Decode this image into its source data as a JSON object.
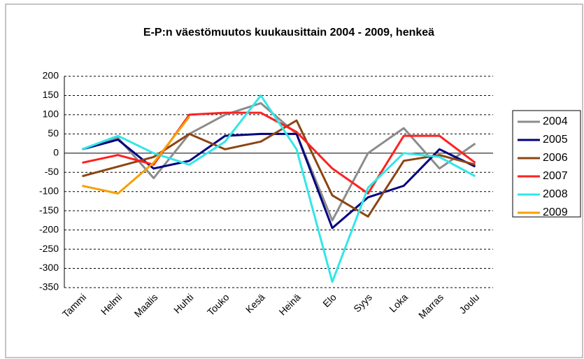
{
  "chart_data": {
    "type": "line",
    "title": "E-P:n väestömuutos kuukausittain 2004 - 2009, henkeä",
    "categories": [
      "Tammi",
      "Helmi",
      "Maalis",
      "Huhti",
      "Touko",
      "Kesä",
      "Heinä",
      "Elo",
      "Syys",
      "Loka",
      "Marras",
      "Joulu"
    ],
    "series": [
      {
        "name": "2004",
        "color": "#8c8c8c",
        "values": [
          10,
          40,
          -65,
          50,
          100,
          130,
          50,
          -175,
          0,
          65,
          -40,
          25
        ]
      },
      {
        "name": "2005",
        "color": "#000080",
        "values": [
          10,
          35,
          -40,
          -20,
          45,
          50,
          50,
          -195,
          -115,
          -85,
          10,
          -35
        ]
      },
      {
        "name": "2006",
        "color": "#8b4513",
        "values": [
          -60,
          -35,
          -10,
          50,
          10,
          30,
          85,
          -110,
          -165,
          -20,
          -5,
          -30
        ]
      },
      {
        "name": "2007",
        "color": "#ff2020",
        "values": [
          -25,
          -5,
          -30,
          100,
          105,
          105,
          55,
          -40,
          -105,
          45,
          45,
          -25
        ]
      },
      {
        "name": "2008",
        "color": "#33e6e6",
        "values": [
          10,
          45,
          0,
          -30,
          30,
          150,
          10,
          -335,
          -90,
          0,
          -10,
          -60
        ]
      },
      {
        "name": "2009",
        "color": "#f5a000",
        "values": [
          -85,
          -105,
          -25,
          95,
          null,
          null,
          null,
          null,
          null,
          null,
          null,
          null
        ]
      }
    ],
    "ylim": [
      -350,
      200
    ],
    "yticks": [
      200,
      150,
      100,
      50,
      0,
      -50,
      -100,
      -150,
      -200,
      -250,
      -300,
      -350
    ],
    "grid": true,
    "legend": "right"
  }
}
